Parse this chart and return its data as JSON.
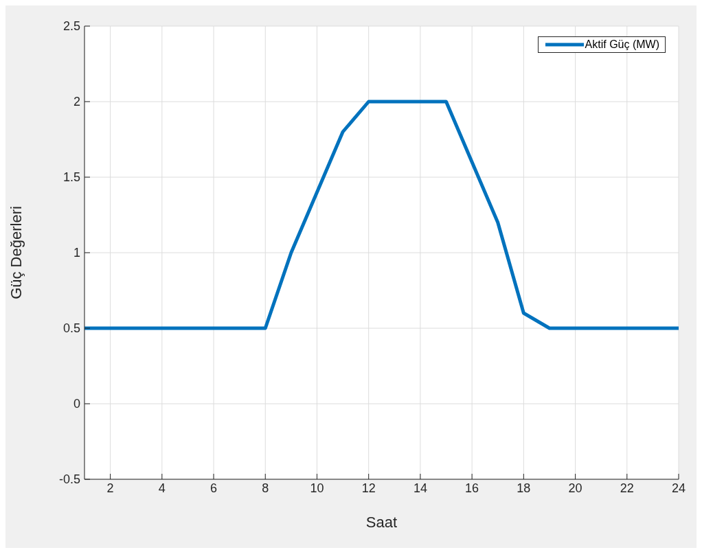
{
  "chart_data": {
    "type": "line",
    "xlabel": "Saat",
    "ylabel": "Güç Değerleri",
    "x": [
      1,
      2,
      3,
      4,
      5,
      6,
      7,
      8,
      9,
      10,
      11,
      12,
      13,
      14,
      15,
      16,
      17,
      18,
      19,
      20,
      21,
      22,
      23,
      24
    ],
    "series": [
      {
        "name": "Aktif Güç (MW)",
        "color": "#0072bd",
        "values": [
          0.5,
          0.5,
          0.5,
          0.5,
          0.5,
          0.5,
          0.5,
          0.5,
          1.0,
          1.4,
          1.8,
          2,
          2,
          2,
          2,
          1.6,
          1.2,
          0.6,
          0.5,
          0.5,
          0.5,
          0.5,
          0.5,
          0.5
        ]
      }
    ],
    "xlim": [
      1,
      24
    ],
    "xticks": [
      2,
      4,
      6,
      8,
      10,
      12,
      14,
      16,
      18,
      20,
      22,
      24
    ],
    "ylim": [
      -0.5,
      2.5
    ],
    "yticks": [
      -0.5,
      0,
      0.5,
      1,
      1.5,
      2,
      2.5
    ],
    "grid": true,
    "legend": "top right"
  }
}
